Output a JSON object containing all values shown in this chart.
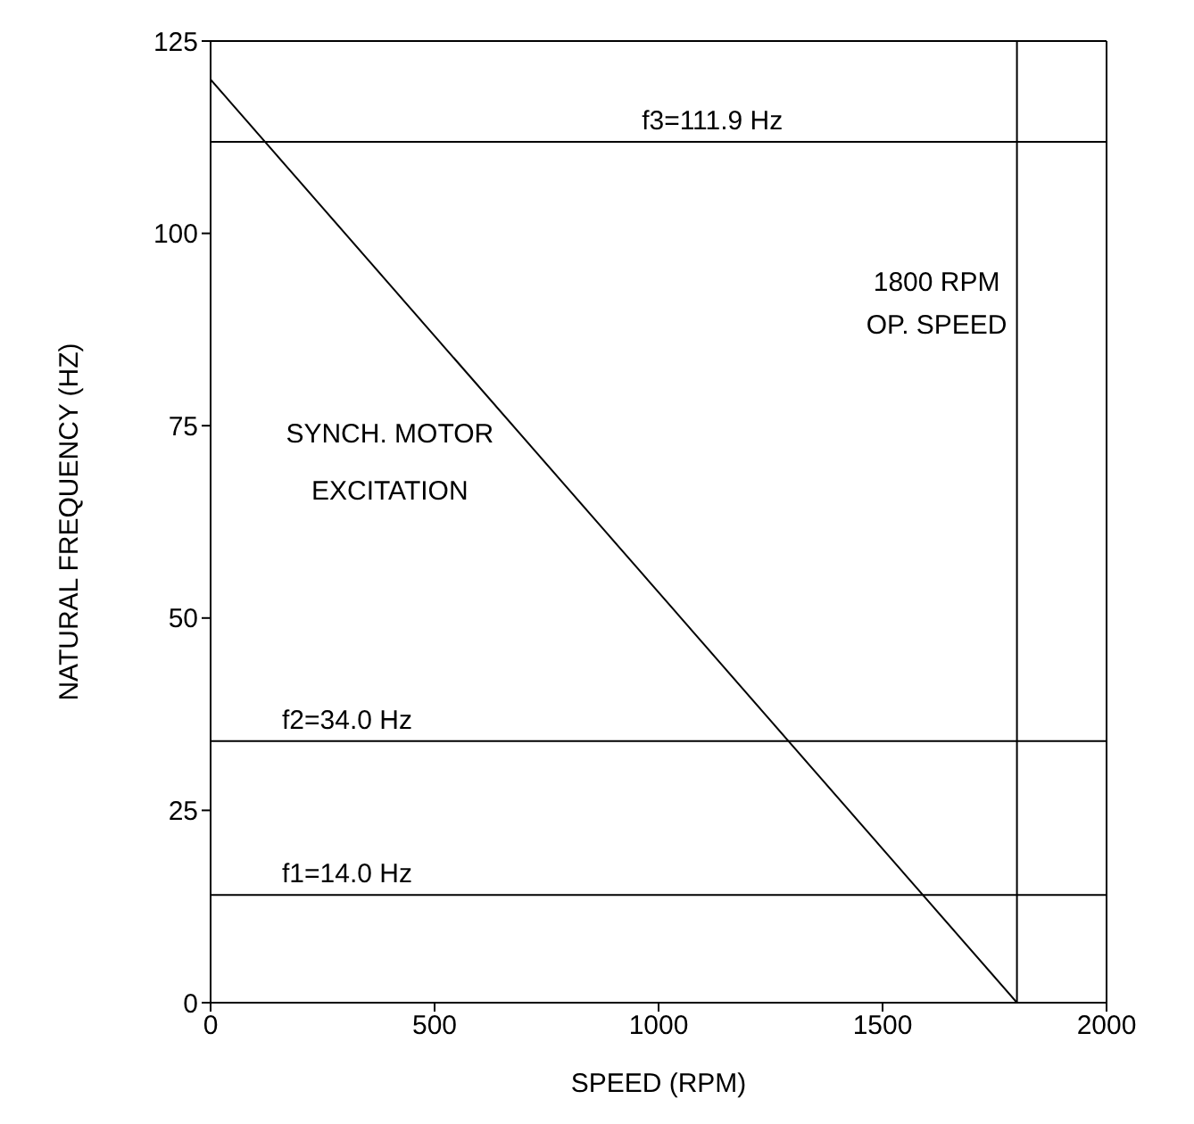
{
  "chart_data": {
    "type": "line",
    "xlabel": "SPEED (RPM)",
    "ylabel": "NATURAL FREQUENCY (HZ)",
    "x": [
      0,
      1800
    ],
    "series": [
      {
        "color": "#000000",
        "values": [
          120,
          0
        ]
      }
    ],
    "xlim": [
      0,
      2000
    ],
    "xticks": [
      0,
      500,
      1000,
      1500,
      2000
    ],
    "ylim": [
      0,
      125
    ],
    "yticks": [
      0,
      25,
      50,
      75,
      100,
      125
    ],
    "ref_lines": [
      {
        "axis": "y",
        "value": 111.9,
        "label": "f3=111.9 Hz",
        "color": "#000000"
      },
      {
        "axis": "y",
        "value": 34.0,
        "label": "f2=34.0 Hz",
        "color": "#000000"
      },
      {
        "axis": "y",
        "value": 14.0,
        "label": "f1=14.0 Hz",
        "color": "#000000"
      },
      {
        "axis": "x",
        "value": 1800,
        "label": "1800 RPM OP. SPEED",
        "color": "#000000"
      }
    ],
    "annotations": [
      "SYNCH. MOTOR EXCITATION"
    ],
    "legend": false,
    "marker": "none",
    "line_style": "solid"
  }
}
